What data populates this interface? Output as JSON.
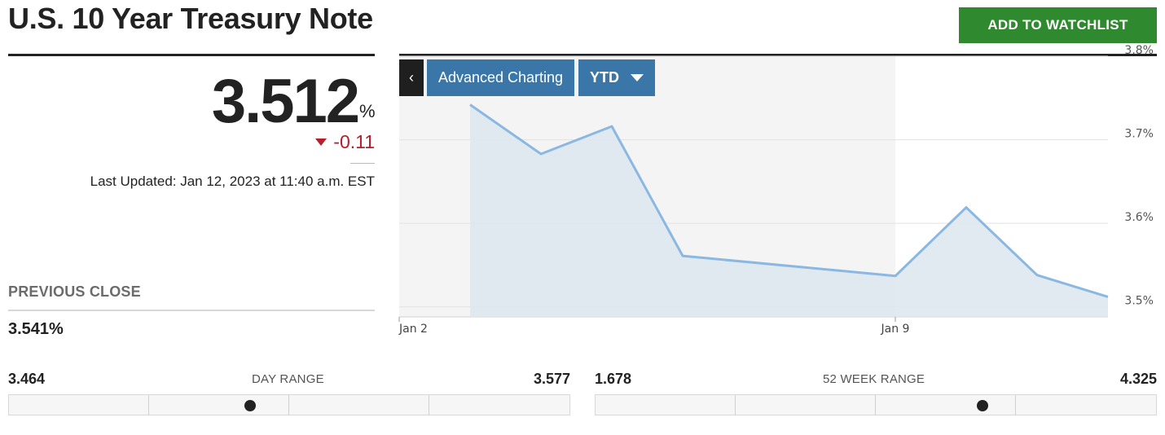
{
  "header": {
    "title": "U.S. 10 Year Treasury Note",
    "watchlist_label": "ADD TO WATCHLIST"
  },
  "quote": {
    "price": "3.512",
    "unit": "%",
    "change": "-0.11",
    "last_updated": "Last Updated: Jan 12, 2023 at 11:40 a.m. EST"
  },
  "previous_close": {
    "label": "PREVIOUS CLOSE",
    "value": "3.541%"
  },
  "chart_toolbar": {
    "back_label": "‹",
    "advanced_label": "Advanced Charting",
    "period_label": "YTD"
  },
  "day_range": {
    "label": "DAY RANGE",
    "low": "3.464",
    "high": "3.577",
    "current_fraction": 0.43
  },
  "week52_range": {
    "label": "52 WEEK RANGE",
    "low": "1.678",
    "high": "4.325",
    "current_fraction": 0.69
  },
  "colors": {
    "line": "#8ab8e3",
    "area": "#dce6ef",
    "shade": "#f4f4f4",
    "negative": "#b3202b",
    "watchlist": "#2f8a2f",
    "toolbar": "#3a77a8"
  },
  "chart_data": {
    "type": "area",
    "x": [
      "2023-01-03",
      "2023-01-04",
      "2023-01-05",
      "2023-01-06",
      "2023-01-09",
      "2023-01-10",
      "2023-01-11",
      "2023-01-12"
    ],
    "y": [
      3.742,
      3.683,
      3.716,
      3.561,
      3.537,
      3.619,
      3.538,
      3.512
    ],
    "x_tick_labels": [
      "Jan 2",
      "Jan 9"
    ],
    "x_tick_dates": [
      "2023-01-02",
      "2023-01-09"
    ],
    "xlim": [
      "2023-01-02",
      "2023-01-12"
    ],
    "ylim": [
      3.488,
      3.8
    ],
    "y_ticks": [
      3.5,
      3.6,
      3.7,
      3.8
    ],
    "y_tick_labels": [
      "3.5%",
      "3.6%",
      "3.7%",
      "3.8%"
    ],
    "shaded_week_range": [
      "2023-01-02",
      "2023-01-09"
    ],
    "y_axis_position": "right",
    "grid": true
  }
}
